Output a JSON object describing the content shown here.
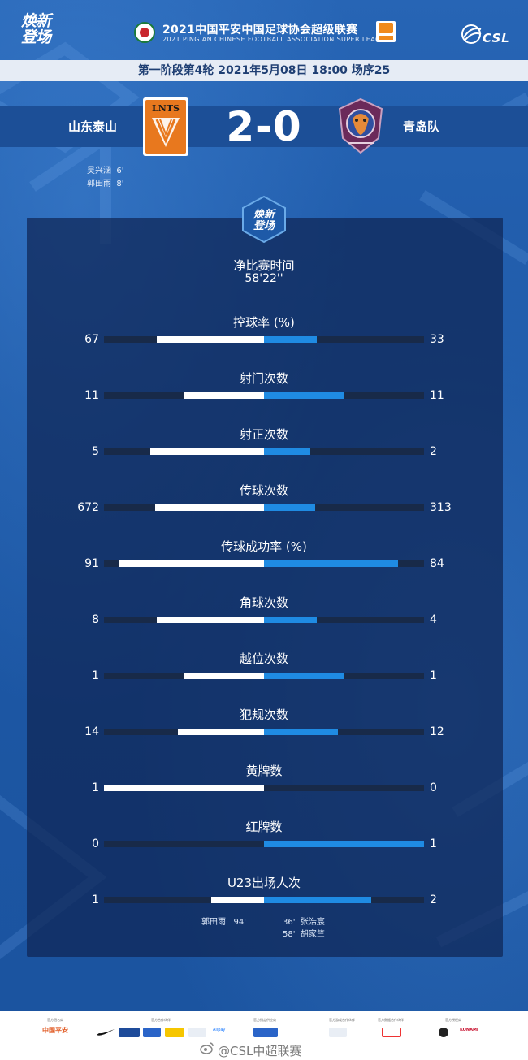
{
  "header": {
    "brand_line1": "焕新",
    "brand_line2": "登场",
    "league_title": "2021中国平安中国足球协会超级联赛",
    "league_subtitle": "2021 PING AN CHINESE FOOTBALL ASSOCIATION SUPER LEAGUE",
    "csl_logo_text": "CSL"
  },
  "match_info": "第一阶段第4轮  2021年5月08日 18:00 场序25",
  "home": {
    "name": "山东泰山",
    "crest_text": "LNTS",
    "goals": [
      {
        "player": "吴兴涵",
        "minute": "6'"
      },
      {
        "player": "郭田雨",
        "minute": "8'"
      }
    ]
  },
  "away": {
    "name": "青岛队"
  },
  "score": "2-0",
  "panel": {
    "badge_line1": "焕新",
    "badge_line2": "登场",
    "time_label": "净比赛时间",
    "time_value": "58'22''"
  },
  "stats": [
    {
      "label": "控球率 (%)",
      "home": "67",
      "away": "33",
      "home_val": 67,
      "away_val": 33
    },
    {
      "label": "射门次数",
      "home": "11",
      "away": "11",
      "home_val": 11,
      "away_val": 11
    },
    {
      "label": "射正次数",
      "home": "5",
      "away": "2",
      "home_val": 5,
      "away_val": 2
    },
    {
      "label": "传球次数",
      "home": "672",
      "away": "313",
      "home_val": 672,
      "away_val": 313
    },
    {
      "label": "传球成功率 (%)",
      "home": "91",
      "away": "84",
      "home_val": 91,
      "away_val": 84
    },
    {
      "label": "角球次数",
      "home": "8",
      "away": "4",
      "home_val": 8,
      "away_val": 4
    },
    {
      "label": "越位次数",
      "home": "1",
      "away": "1",
      "home_val": 1,
      "away_val": 1
    },
    {
      "label": "犯规次数",
      "home": "14",
      "away": "12",
      "home_val": 14,
      "away_val": 12
    },
    {
      "label": "黄牌数",
      "home": "1",
      "away": "0",
      "home_val": 1,
      "away_val": 0
    },
    {
      "label": "红牌数",
      "home": "0",
      "away": "1",
      "home_val": 0,
      "away_val": 1
    },
    {
      "label": "U23出场人次",
      "home": "1",
      "away": "2",
      "home_val": 1,
      "away_val": 2
    }
  ],
  "bar_fill": [
    {
      "home": 0.67,
      "away": 0.33
    },
    {
      "home": 0.5,
      "away": 0.5
    },
    {
      "home": 0.71,
      "away": 0.29
    },
    {
      "home": 0.68,
      "away": 0.32
    },
    {
      "home": 0.91,
      "away": 0.84
    },
    {
      "home": 0.67,
      "away": 0.33
    },
    {
      "home": 0.5,
      "away": 0.5
    },
    {
      "home": 0.54,
      "away": 0.46
    },
    {
      "home": 1.0,
      "away": 0.0
    },
    {
      "home": 0.0,
      "away": 1.0
    },
    {
      "home": 0.33,
      "away": 0.67
    }
  ],
  "u23": {
    "home": [
      {
        "player": "郭田雨",
        "minute": "94'"
      }
    ],
    "away": [
      {
        "minute": "36'",
        "player": "张浩宸"
      },
      {
        "minute": "58'",
        "player": "胡家竺"
      }
    ]
  },
  "footer": {
    "watermark": "@CSL中超联赛",
    "sponsor_groups": [
      "官方冠名商",
      "官方合作伙伴",
      "官方指定供应商",
      "官方游戏合作伙伴",
      "官方数据合作伙伴",
      "官方授权商"
    ],
    "sponsors": [
      "中国平安",
      "NIKE",
      "上汽集团",
      "DHL",
      "Alipay",
      "LEXUS",
      "EA SPORTS",
      "KONAMI"
    ]
  },
  "colors": {
    "background": "#1e5aa8",
    "home_bar": "#ffffff",
    "away_bar": "#1f8be3",
    "track": "#182a49",
    "info_bar": "#e6ecf5"
  }
}
